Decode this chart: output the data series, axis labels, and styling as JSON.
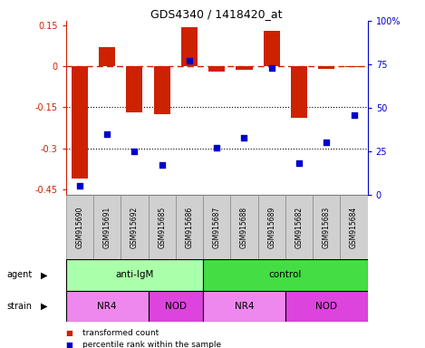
{
  "title": "GDS4340 / 1418420_at",
  "samples": [
    "GSM915690",
    "GSM915691",
    "GSM915692",
    "GSM915685",
    "GSM915686",
    "GSM915687",
    "GSM915688",
    "GSM915689",
    "GSM915682",
    "GSM915683",
    "GSM915684"
  ],
  "bar_values": [
    -0.41,
    0.07,
    -0.17,
    -0.175,
    0.143,
    -0.02,
    -0.015,
    0.128,
    -0.19,
    -0.01,
    -0.005
  ],
  "scatter_values": [
    5,
    35,
    25,
    17,
    77,
    27,
    33,
    73,
    18,
    30,
    46
  ],
  "bar_color": "#cc2200",
  "scatter_color": "#0000cc",
  "ylim_left": [
    -0.47,
    0.165
  ],
  "ylim_right": [
    0,
    100
  ],
  "yticks_left": [
    0.15,
    0.0,
    -0.15,
    -0.3,
    -0.45
  ],
  "yticks_right": [
    100,
    75,
    50,
    25,
    0
  ],
  "hline_y": 0.0,
  "dotted_lines": [
    -0.15,
    -0.3
  ],
  "agent_groups": [
    {
      "label": "anti-IgM",
      "start": 0,
      "end": 5,
      "color": "#aaffaa"
    },
    {
      "label": "control",
      "start": 5,
      "end": 11,
      "color": "#44dd44"
    }
  ],
  "strain_groups": [
    {
      "label": "NR4",
      "start": 0,
      "end": 3,
      "color": "#ee88ee"
    },
    {
      "label": "NOD",
      "start": 3,
      "end": 5,
      "color": "#dd44dd"
    },
    {
      "label": "NR4",
      "start": 5,
      "end": 8,
      "color": "#ee88ee"
    },
    {
      "label": "NOD",
      "start": 8,
      "end": 11,
      "color": "#dd44dd"
    }
  ],
  "legend_items": [
    {
      "label": "transformed count",
      "color": "#cc2200"
    },
    {
      "label": "percentile rank within the sample",
      "color": "#0000cc"
    }
  ],
  "agent_label": "agent",
  "strain_label": "strain"
}
